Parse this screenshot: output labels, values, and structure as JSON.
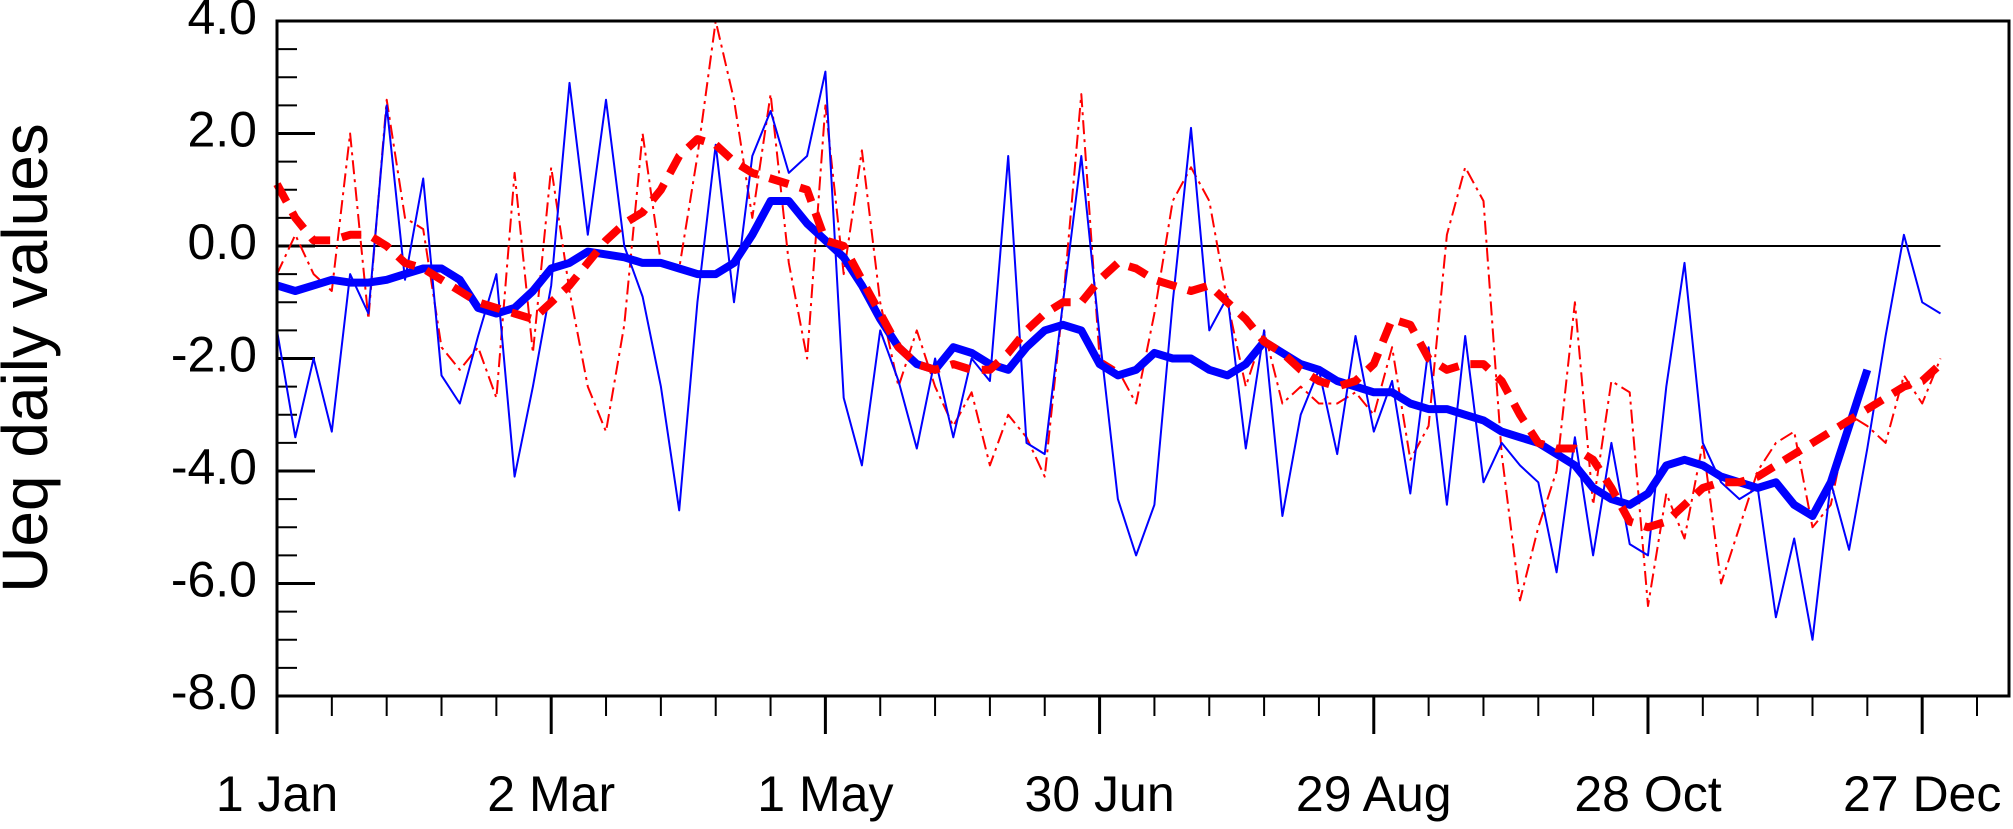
{
  "chart_data": {
    "type": "line",
    "ylabel": "Ueq daily values",
    "xlim": [
      0,
      379
    ],
    "ylim": [
      -8,
      4
    ],
    "xticks": [
      {
        "value": 0,
        "label": "1 Jan"
      },
      {
        "value": 60,
        "label": "2 Mar"
      },
      {
        "value": 120,
        "label": "1 May"
      },
      {
        "value": 180,
        "label": "30 Jun"
      },
      {
        "value": 240,
        "label": "29 Aug"
      },
      {
        "value": 300,
        "label": "28 Oct"
      },
      {
        "value": 360,
        "label": "27 Dec"
      }
    ],
    "yticks": [
      {
        "value": 4,
        "label": "4.0"
      },
      {
        "value": 2,
        "label": "2.0"
      },
      {
        "value": 0,
        "label": "0.0"
      },
      {
        "value": -2,
        "label": "-2.0"
      },
      {
        "value": -4,
        "label": "-4.0"
      },
      {
        "value": -6,
        "label": "-6.0"
      },
      {
        "value": -8,
        "label": "-8.0"
      }
    ],
    "reference_line": 0,
    "x": [
      0,
      4,
      8,
      12,
      16,
      20,
      24,
      28,
      32,
      36,
      40,
      44,
      48,
      52,
      56,
      60,
      64,
      68,
      72,
      76,
      80,
      84,
      88,
      92,
      96,
      100,
      104,
      108,
      112,
      116,
      120,
      124,
      128,
      132,
      136,
      140,
      144,
      148,
      152,
      156,
      160,
      164,
      168,
      172,
      176,
      180,
      184,
      188,
      192,
      196,
      200,
      204,
      208,
      212,
      216,
      220,
      224,
      228,
      232,
      236,
      240,
      244,
      248,
      252,
      256,
      260,
      264,
      268,
      272,
      276,
      280,
      284,
      288,
      292,
      296,
      300,
      304,
      308,
      312,
      316,
      320,
      324,
      328,
      332,
      336,
      340,
      344,
      348,
      352,
      356,
      360,
      364
    ],
    "series": [
      {
        "color": "#ff0000",
        "linestyle": "dashed",
        "weight": "normal",
        "values": [
          -0.5,
          0.2,
          -0.5,
          -0.8,
          2.0,
          -1.3,
          2.6,
          0.5,
          0.3,
          -1.8,
          -2.2,
          -1.8,
          -2.7,
          1.3,
          -1.9,
          1.4,
          -0.8,
          -2.5,
          -3.3,
          -1.4,
          2.0,
          -0.3,
          -0.4,
          1.6,
          4.0,
          2.6,
          0.5,
          2.7,
          -0.3,
          -2.0,
          2.5,
          -0.5,
          1.7,
          -1.0,
          -2.5,
          -1.5,
          -2.5,
          -3.2,
          -2.6,
          -3.9,
          -3.0,
          -3.4,
          -4.1,
          -1.0,
          2.7,
          -2.0,
          -2.2,
          -2.8,
          -1.2,
          0.8,
          1.4,
          0.8,
          -1.0,
          -2.5,
          -1.5,
          -2.8,
          -2.5,
          -2.8,
          -2.8,
          -2.6,
          -3.0,
          -1.8,
          -3.8,
          -3.2,
          0.2,
          1.4,
          0.8,
          -3.7,
          -6.3,
          -5.0,
          -4.0,
          -1.0,
          -4.6,
          -2.4,
          -2.6,
          -6.4,
          -4.4,
          -5.2,
          -3.5,
          -6.0,
          -5.0,
          -4.0,
          -3.5,
          -3.3,
          -5.0,
          -4.6,
          -3.0,
          -3.2,
          -3.5,
          -2.3,
          -2.8,
          -2.0
        ]
      },
      {
        "color": "#0000ff",
        "linestyle": "solid",
        "weight": "normal",
        "values": [
          -1.5,
          -3.4,
          -2.0,
          -3.3,
          -0.5,
          -1.2,
          2.5,
          -0.6,
          1.2,
          -2.3,
          -2.8,
          -1.6,
          -0.5,
          -4.1,
          -2.5,
          -0.7,
          2.9,
          0.2,
          2.6,
          0.0,
          -0.9,
          -2.5,
          -4.7,
          -1.0,
          1.8,
          -1.0,
          1.6,
          2.4,
          1.3,
          1.6,
          3.1,
          -2.7,
          -3.9,
          -1.5,
          -2.4,
          -3.6,
          -2.0,
          -3.4,
          -2.0,
          -2.4,
          1.6,
          -3.5,
          -3.7,
          -1.0,
          1.6,
          -1.6,
          -4.5,
          -5.5,
          -4.6,
          -1.0,
          2.1,
          -1.5,
          -0.9,
          -3.6,
          -1.5,
          -4.8,
          -3.0,
          -2.2,
          -3.7,
          -1.6,
          -3.3,
          -2.4,
          -4.4,
          -1.8,
          -4.6,
          -1.6,
          -4.2,
          -3.5,
          -3.9,
          -4.2,
          -5.8,
          -3.4,
          -5.5,
          -3.5,
          -5.3,
          -5.5,
          -2.5,
          -0.3,
          -3.5,
          -4.2,
          -4.5,
          -4.3,
          -6.6,
          -5.2,
          -7.0,
          -4.2,
          -5.4,
          -3.6,
          -1.6,
          0.2,
          -1.0,
          -1.2
        ]
      },
      {
        "color": "#0000ff",
        "linestyle": "solid",
        "weight": "bold",
        "values": [
          -0.7,
          -0.8,
          -0.7,
          -0.6,
          -0.65,
          -0.65,
          -0.6,
          -0.5,
          -0.4,
          -0.4,
          -0.6,
          -1.1,
          -1.2,
          -1.1,
          -0.8,
          -0.4,
          -0.3,
          -0.1,
          -0.15,
          -0.2,
          -0.3,
          -0.3,
          -0.4,
          -0.5,
          -0.5,
          -0.3,
          0.2,
          0.8,
          0.8,
          0.4,
          0.1,
          -0.2,
          -0.7,
          -1.3,
          -1.8,
          -2.1,
          -2.2,
          -1.8,
          -1.9,
          -2.1,
          -2.2,
          -1.8,
          -1.5,
          -1.4,
          -1.5,
          -2.1,
          -2.3,
          -2.2,
          -1.9,
          -2.0,
          -2.0,
          -2.2,
          -2.3,
          -2.1,
          -1.7,
          -1.9,
          -2.1,
          -2.2,
          -2.4,
          -2.5,
          -2.6,
          -2.6,
          -2.8,
          -2.9,
          -2.9,
          -3.0,
          -3.1,
          -3.3,
          -3.4,
          -3.5,
          -3.7,
          -3.9,
          -4.3,
          -4.5,
          -4.6,
          -4.4,
          -3.9,
          -3.8,
          -3.9,
          -4.1,
          -4.2,
          -4.3,
          -4.2,
          -4.6,
          -4.8,
          -4.2,
          -3.2,
          -2.2,
          null,
          null,
          null,
          null
        ]
      },
      {
        "color": "#ff0000",
        "linestyle": "dashed",
        "weight": "bold",
        "values": [
          1.1,
          0.5,
          0.1,
          0.1,
          0.2,
          0.2,
          0.0,
          -0.3,
          -0.4,
          -0.6,
          -0.8,
          -1.0,
          -1.1,
          -1.2,
          -1.3,
          -1.0,
          -0.7,
          -0.3,
          0.1,
          0.4,
          0.6,
          1.0,
          1.6,
          1.9,
          1.8,
          1.5,
          1.3,
          1.2,
          1.1,
          1.0,
          0.1,
          0.0,
          -0.6,
          -1.2,
          -1.8,
          -2.1,
          -2.2,
          -2.1,
          -2.2,
          -2.2,
          -1.9,
          -1.5,
          -1.2,
          -1.0,
          -1.0,
          -0.6,
          -0.3,
          -0.4,
          -0.6,
          -0.7,
          -0.8,
          -0.7,
          -1.0,
          -1.3,
          -1.7,
          -1.9,
          -2.2,
          -2.4,
          -2.5,
          -2.4,
          -2.1,
          -1.3,
          -1.4,
          -2.0,
          -2.2,
          -2.1,
          -2.1,
          -2.4,
          -3.0,
          -3.5,
          -3.6,
          -3.6,
          -3.8,
          -4.3,
          -4.9,
          -5.0,
          -4.9,
          -4.6,
          -4.3,
          -4.2,
          -4.2,
          -4.1,
          -3.9,
          -3.7,
          -3.5,
          -3.3,
          -3.1,
          -2.9,
          -2.7,
          -2.5,
          -2.4,
          -2.1
        ]
      }
    ]
  }
}
